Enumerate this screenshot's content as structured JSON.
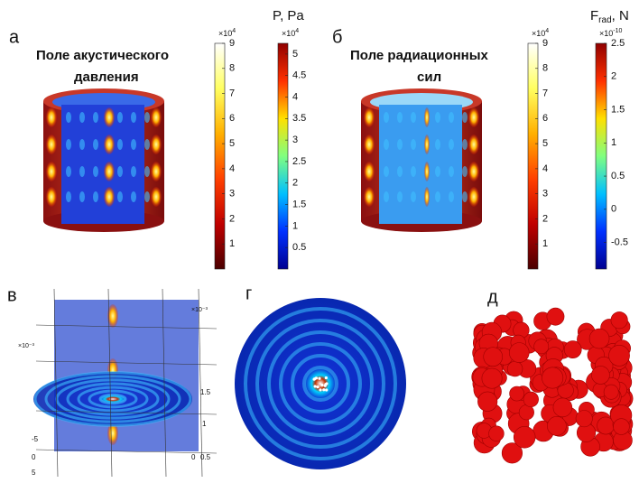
{
  "panels": [
    {
      "label": "а",
      "title": [
        "Поле акустического",
        "давления"
      ]
    },
    {
      "label": "б",
      "title": [
        "Поле радиационных",
        "сил"
      ]
    },
    {
      "label": "в",
      "axis_texts": [
        "×10⁻³",
        "×10⁻³",
        "1.5",
        "1",
        "0.5",
        "-5",
        "0",
        "5",
        "0"
      ]
    },
    {
      "label": "г"
    },
    {
      "label": "д"
    }
  ],
  "colorbars": [
    {
      "multiplier": {
        "base": "×10",
        "exp": "4"
      },
      "range": [
        0,
        9
      ],
      "ticks": [
        1,
        2,
        3,
        4,
        5,
        6,
        7,
        8,
        9
      ],
      "colors": [
        "#4a0000",
        "#c00000",
        "#ff4000",
        "#ffb000",
        "#ffff60",
        "#ffffff"
      ]
    },
    {
      "title": {
        "main": "P, Pa"
      },
      "multiplier": {
        "base": "×10",
        "exp": "4"
      },
      "range": [
        0,
        5.25
      ],
      "ticks": [
        0.5,
        1,
        1.5,
        2,
        2.5,
        3,
        3.5,
        4,
        4.5,
        5
      ],
      "colors": [
        "#000090",
        "#0030ff",
        "#00c0ff",
        "#80ff80",
        "#ffe000",
        "#ff3000",
        "#900000"
      ]
    },
    {
      "multiplier": {
        "base": "×10",
        "exp": "4"
      },
      "range": [
        0,
        9
      ],
      "ticks": [
        1,
        2,
        3,
        4,
        5,
        6,
        7,
        8,
        9
      ],
      "colors": [
        "#4a0000",
        "#c00000",
        "#ff4000",
        "#ffb000",
        "#ffff60",
        "#ffffff"
      ]
    },
    {
      "title": {
        "main": "F",
        "sub": "rad",
        "tail": ", N"
      },
      "multiplier": {
        "base": "×10",
        "exp": "-10"
      },
      "range": [
        -0.9,
        2.5
      ],
      "ticks": [
        -0.5,
        0,
        0.5,
        1,
        1.5,
        2,
        2.5
      ],
      "colors": [
        "#000090",
        "#0030ff",
        "#00c0ff",
        "#80ff80",
        "#ffe000",
        "#ff3000",
        "#900000"
      ]
    }
  ]
}
